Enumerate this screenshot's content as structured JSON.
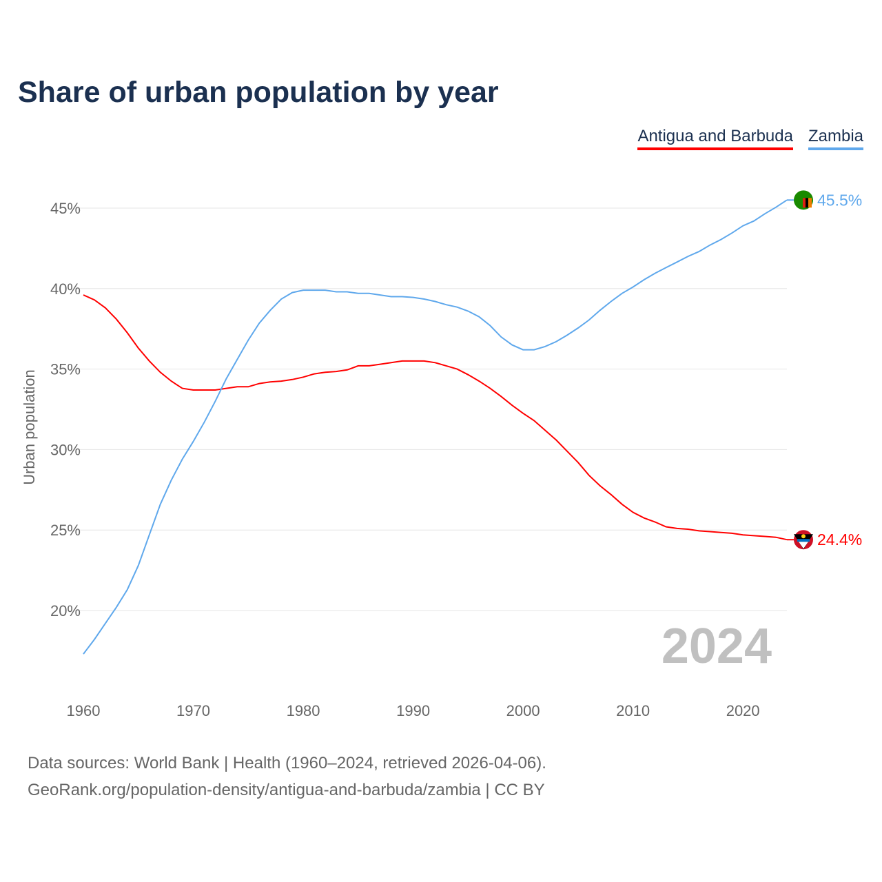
{
  "title": "Share of urban population by year",
  "footer": {
    "line1": "Data sources: World Bank | Health (1960–2024, retrieved 2026-04-06).",
    "line2": "GeoRank.org/population-density/antigua-and-barbuda/zambia | CC BY"
  },
  "chart_data": {
    "type": "line",
    "title": "Share of urban population by year",
    "xlabel": "",
    "ylabel": "Urban population",
    "xlim": [
      1960,
      2024
    ],
    "ylim": [
      16,
      47
    ],
    "yticks": [
      20,
      25,
      30,
      35,
      40,
      45
    ],
    "ytick_labels": [
      "20%",
      "25%",
      "30%",
      "35%",
      "40%",
      "45%"
    ],
    "xticks": [
      1960,
      1970,
      1980,
      1990,
      2000,
      2010,
      2020
    ],
    "xtick_labels": [
      "1960",
      "1970",
      "1980",
      "1990",
      "2000",
      "2010",
      "2020"
    ],
    "grid": true,
    "legend_placement": "top-right",
    "watermark_year": "2024",
    "x": [
      1960,
      1961,
      1962,
      1963,
      1964,
      1965,
      1966,
      1967,
      1968,
      1969,
      1970,
      1971,
      1972,
      1973,
      1974,
      1975,
      1976,
      1977,
      1978,
      1979,
      1980,
      1981,
      1982,
      1983,
      1984,
      1985,
      1986,
      1987,
      1988,
      1989,
      1990,
      1991,
      1992,
      1993,
      1994,
      1995,
      1996,
      1997,
      1998,
      1999,
      2000,
      2001,
      2002,
      2003,
      2004,
      2005,
      2006,
      2007,
      2008,
      2009,
      2010,
      2011,
      2012,
      2013,
      2014,
      2015,
      2016,
      2017,
      2018,
      2019,
      2020,
      2021,
      2022,
      2023,
      2024
    ],
    "series": [
      {
        "name": "Antigua and Barbuda",
        "color": "#ff0000",
        "end_label": "24.4%",
        "values": [
          39.6,
          39.3,
          38.8,
          38.1,
          37.25,
          36.3,
          35.5,
          34.8,
          34.25,
          33.8,
          33.7,
          33.7,
          33.7,
          33.8,
          33.9,
          33.9,
          34.1,
          34.2,
          34.25,
          34.35,
          34.5,
          34.7,
          34.8,
          34.85,
          34.95,
          35.2,
          35.2,
          35.3,
          35.4,
          35.5,
          35.5,
          35.5,
          35.4,
          35.2,
          35.0,
          34.65,
          34.25,
          33.8,
          33.3,
          32.75,
          32.25,
          31.8,
          31.2,
          30.6,
          29.9,
          29.2,
          28.4,
          27.75,
          27.2,
          26.6,
          26.1,
          25.75,
          25.5,
          25.2,
          25.1,
          25.05,
          24.95,
          24.9,
          24.85,
          24.8,
          24.7,
          24.65,
          24.6,
          24.55,
          24.4
        ]
      },
      {
        "name": "Zambia",
        "color": "#5fa8ec",
        "end_label": "45.5%",
        "values": [
          17.3,
          18.2,
          19.2,
          20.2,
          21.3,
          22.8,
          24.7,
          26.6,
          28.1,
          29.4,
          30.5,
          31.7,
          33.0,
          34.4,
          35.6,
          36.8,
          37.85,
          38.65,
          39.35,
          39.75,
          39.9,
          39.9,
          39.9,
          39.8,
          39.8,
          39.7,
          39.7,
          39.6,
          39.5,
          39.5,
          39.45,
          39.35,
          39.2,
          39.0,
          38.85,
          38.6,
          38.25,
          37.7,
          37.0,
          36.5,
          36.2,
          36.2,
          36.4,
          36.7,
          37.1,
          37.55,
          38.05,
          38.65,
          39.2,
          39.7,
          40.1,
          40.55,
          40.95,
          41.3,
          41.65,
          42.0,
          42.3,
          42.7,
          43.05,
          43.45,
          43.9,
          44.2,
          44.65,
          45.05,
          45.5
        ]
      }
    ]
  }
}
